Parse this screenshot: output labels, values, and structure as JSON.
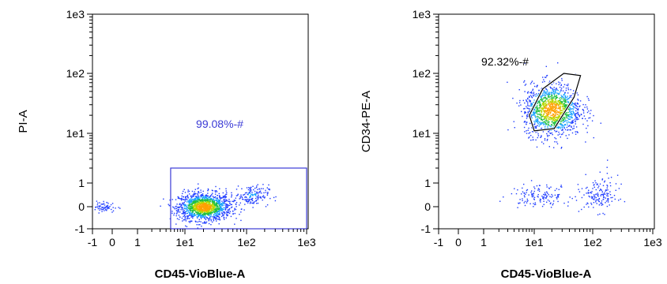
{
  "chart_data": [
    {
      "type": "scatter",
      "title": "",
      "xlabel": "CD45-VioBlue-A",
      "ylabel": "PI-A",
      "x_scale": "biexponential",
      "y_scale": "biexponential",
      "x_ticks": [
        "-1",
        "0",
        "1",
        "1e1",
        "1e2",
        "1e3"
      ],
      "y_ticks": [
        "-1",
        "0",
        "1",
        "1e1",
        "1e2",
        "1e3"
      ],
      "xlim": [
        -1,
        1000
      ],
      "ylim": [
        -1,
        1000
      ],
      "grid": false,
      "point_colormap": "density (blue-green-yellow-red)",
      "clusters": [
        {
          "x_center": 20,
          "y_center": 0,
          "description": "main population"
        },
        {
          "x_center": 120,
          "y_center": 0.5,
          "description": "minor population"
        },
        {
          "x_center": -0.5,
          "y_center": 0,
          "description": "sparse low events"
        }
      ],
      "gates": [
        {
          "shape": "rectangle",
          "x_range": [
            5,
            1000
          ],
          "y_range": [
            -1,
            2
          ],
          "label": "99.08%-#",
          "color": "#3b3bd6"
        }
      ]
    },
    {
      "type": "scatter",
      "title": "",
      "xlabel": "CD45-VioBlue-A",
      "ylabel": "CD34-PE-A",
      "x_scale": "biexponential",
      "y_scale": "biexponential",
      "x_ticks": [
        "-1",
        "0",
        "1",
        "1e1",
        "1e2",
        "1e3"
      ],
      "y_ticks": [
        "-1",
        "0",
        "1",
        "1e1",
        "1e2",
        "1e3"
      ],
      "xlim": [
        -1,
        1000
      ],
      "ylim": [
        -1,
        1000
      ],
      "grid": false,
      "point_colormap": "density (blue-green-yellow-red)",
      "clusters": [
        {
          "x_center": 20,
          "y_center": 25,
          "description": "CD34+ population"
        },
        {
          "x_center": 12,
          "y_center": 0.5,
          "description": "low population"
        },
        {
          "x_center": 130,
          "y_center": 0.5,
          "description": "low population right"
        }
      ],
      "gates": [
        {
          "shape": "polygon",
          "points": [
            [
              8,
              20
            ],
            [
              14,
              55
            ],
            [
              32,
              100
            ],
            [
              62,
              92
            ],
            [
              48,
              40
            ],
            [
              22,
              12
            ],
            [
              10,
              11
            ]
          ],
          "label": "92.32%-#",
          "color": "#000000"
        }
      ]
    }
  ]
}
